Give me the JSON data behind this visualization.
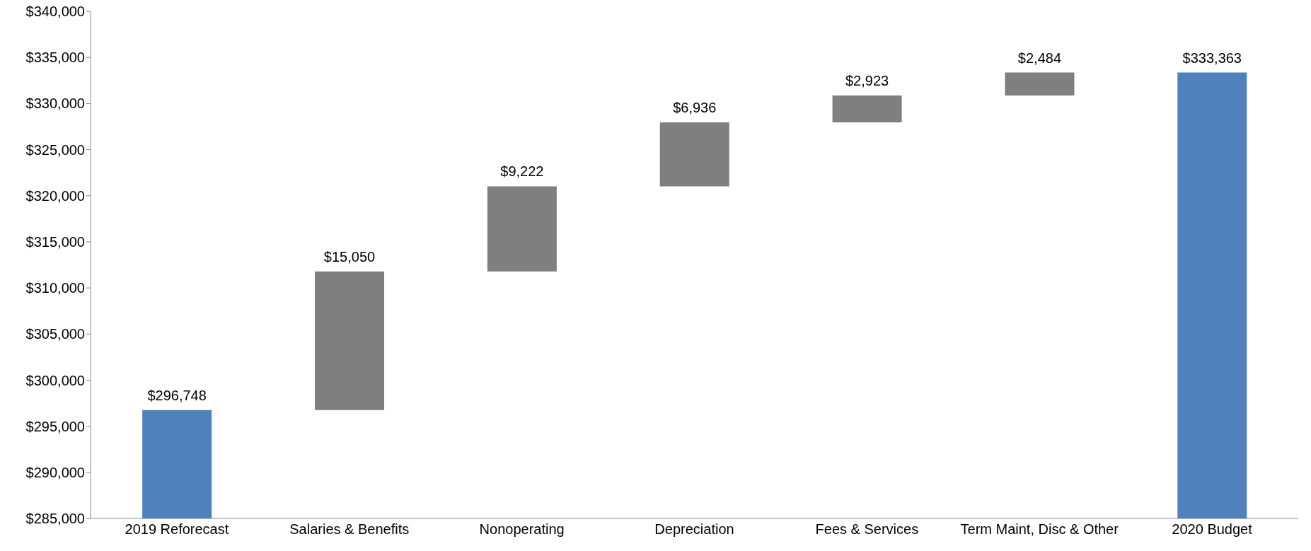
{
  "chart_data": {
    "type": "bar",
    "categories": [
      "2019 Reforecast",
      "Salaries & Benefits",
      "Nonoperating",
      "Depreciation",
      "Fees & Services",
      "Term Maint, Disc & Other",
      "2020 Budget"
    ],
    "values": [
      296748,
      15050,
      9222,
      6936,
      2923,
      2484,
      333363
    ],
    "base": [
      null,
      296748,
      311798,
      321020,
      327956,
      330879,
      null
    ],
    "colors": [
      "#4f81bd",
      "#7f7f7f",
      "#7f7f7f",
      "#7f7f7f",
      "#7f7f7f",
      "#7f7f7f",
      "#4f81bd"
    ],
    "value_labels": [
      "$296,748",
      "$15,050",
      "$9,222",
      "$6,936",
      "$2,923",
      "$2,484",
      "$333,363"
    ],
    "ylim": [
      285000,
      340000
    ],
    "yticks": [
      {
        "value": 285000,
        "label": "$285,000"
      },
      {
        "value": 290000,
        "label": "$290,000"
      },
      {
        "value": 295000,
        "label": "$295,000"
      },
      {
        "value": 300000,
        "label": "$300,000"
      },
      {
        "value": 305000,
        "label": "$305,000"
      },
      {
        "value": 310000,
        "label": "$310,000"
      },
      {
        "value": 315000,
        "label": "$315,000"
      },
      {
        "value": 320000,
        "label": "$320,000"
      },
      {
        "value": 325000,
        "label": "$325,000"
      },
      {
        "value": 330000,
        "label": "$330,000"
      },
      {
        "value": 335000,
        "label": "$335,000"
      },
      {
        "value": 340000,
        "label": "$340,000"
      }
    ],
    "grid": false
  }
}
